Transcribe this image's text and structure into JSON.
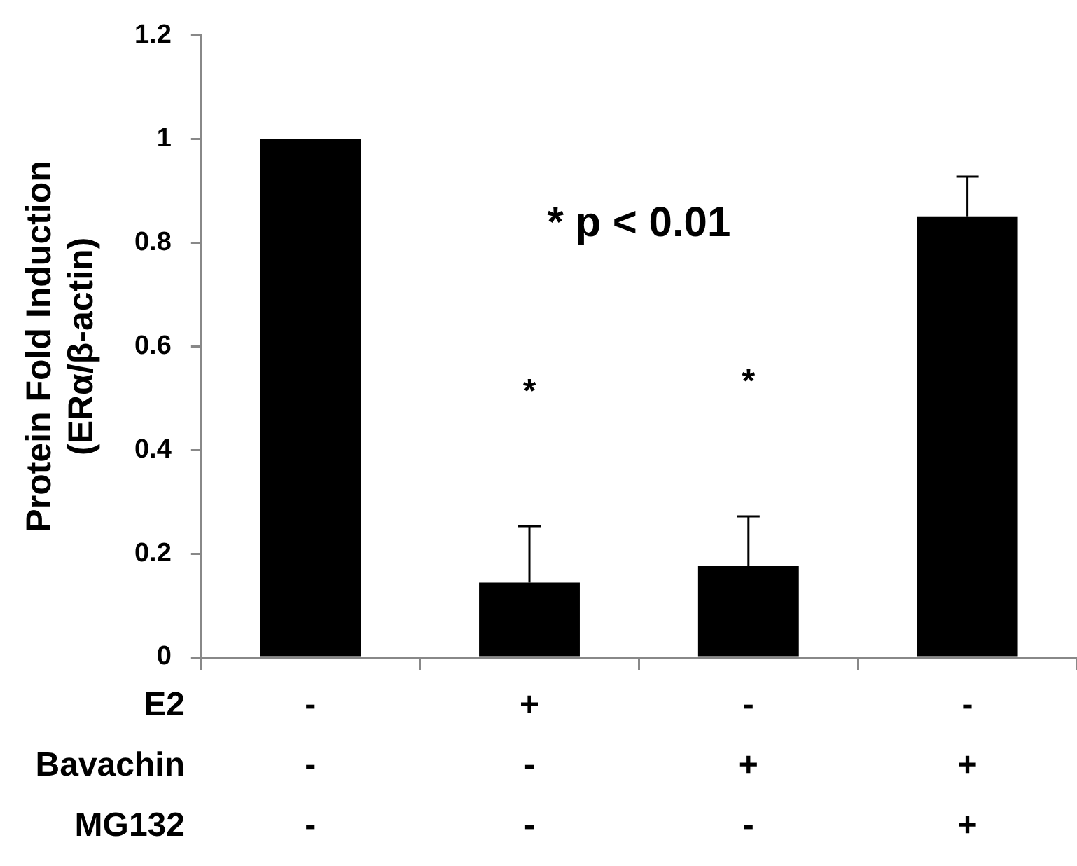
{
  "chart_data": {
    "type": "bar",
    "ylabel": "Protein Fold Induction\n(ERα/β-actin)",
    "categories": [
      "-\n-\n-",
      "+\n-\n-",
      "-\n+\n-",
      "-\n+\n+"
    ],
    "values": [
      1.0,
      0.144,
      0.176,
      0.851
    ],
    "color": "#000000",
    "errors": [
      null,
      [
        0.144,
        0.253
      ],
      [
        0.176,
        0.272
      ],
      [
        0.851,
        0.928
      ]
    ],
    "ylim": [
      0,
      1.2
    ],
    "yticks": [
      0,
      0.2,
      0.4,
      0.6,
      0.8,
      1,
      1.2
    ],
    "grid": false,
    "legend": false,
    "annotations": [
      "E2",
      "Bavachin",
      "MG132",
      "* p < 0.01",
      "*",
      "*"
    ]
  }
}
